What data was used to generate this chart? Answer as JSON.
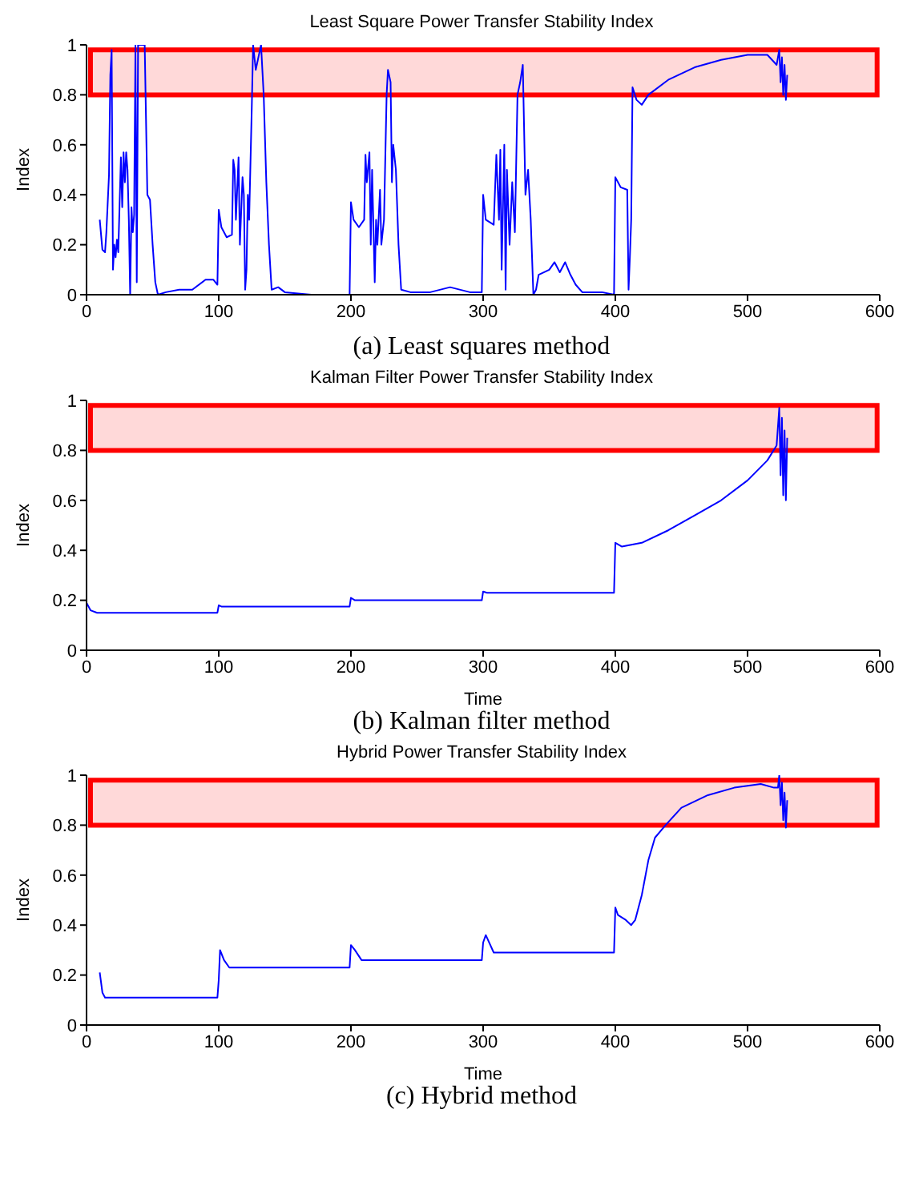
{
  "chart_data": [
    {
      "type": "line",
      "title": "Least Square Power Transfer Stability Index",
      "ylabel": "Index",
      "xlim": [
        0,
        600
      ],
      "xticks": [
        0,
        100,
        200,
        300,
        400,
        500,
        600
      ],
      "ylim": [
        0,
        1
      ],
      "yticks": [
        0,
        0.2,
        0.4,
        0.6,
        0.8,
        1
      ],
      "bands": [
        {
          "axis": "y",
          "from": 0.8,
          "to": 0.98,
          "color": "#ff0000"
        }
      ],
      "annotations": [
        "(a) Least squares method"
      ],
      "series": [
        {
          "color": "#0000ff",
          "x": [
            10,
            12,
            14,
            15,
            17,
            18,
            19,
            20,
            21,
            22,
            23,
            24,
            26,
            27,
            28,
            29,
            30,
            31,
            32,
            33,
            34,
            35,
            36,
            37,
            38,
            39,
            40,
            44,
            46,
            48,
            50,
            52,
            54,
            60,
            70,
            80,
            90,
            96,
            99,
            100,
            102,
            106,
            110,
            111,
            112,
            113,
            115,
            116,
            118,
            119,
            120,
            121,
            122,
            123,
            125,
            126,
            128,
            132,
            134,
            136,
            138,
            140,
            145,
            150,
            170,
            199,
            200,
            202,
            206,
            210,
            211,
            212,
            214,
            215,
            216,
            218,
            219,
            220,
            222,
            223,
            225,
            226,
            227,
            228,
            230,
            231,
            232,
            234,
            236,
            238,
            245,
            260,
            275,
            290,
            299,
            300,
            302,
            308,
            310,
            312,
            313,
            314,
            316,
            317,
            318,
            320,
            322,
            324,
            326,
            328,
            330,
            332,
            334,
            336,
            338,
            340,
            342,
            350,
            354,
            358,
            362,
            366,
            370,
            375,
            390,
            399,
            400,
            404,
            409,
            410,
            411,
            412,
            413,
            416,
            420,
            425,
            440,
            460,
            480,
            500,
            515,
            522,
            524,
            525,
            526,
            527,
            528,
            529,
            530
          ],
          "values": [
            0.3,
            0.18,
            0.17,
            0.25,
            0.48,
            0.88,
            0.98,
            0.1,
            0.2,
            0.15,
            0.22,
            0.17,
            0.55,
            0.35,
            0.57,
            0.45,
            0.57,
            0.5,
            0.3,
            0,
            0.35,
            0.25,
            0.32,
            1,
            0.05,
            1,
            1,
            1,
            0.4,
            0.38,
            0.2,
            0.05,
            0,
            0.01,
            0.02,
            0.02,
            0.06,
            0.06,
            0.04,
            0.34,
            0.27,
            0.23,
            0.24,
            0.54,
            0.5,
            0.3,
            0.55,
            0.2,
            0.47,
            0.4,
            0.02,
            0.1,
            0.4,
            0.3,
            0.75,
            1,
            0.9,
            1,
            0.8,
            0.45,
            0.2,
            0.02,
            0.03,
            0.01,
            0,
            0,
            0.37,
            0.3,
            0.27,
            0.3,
            0.56,
            0.45,
            0.57,
            0.2,
            0.5,
            0.05,
            0.3,
            0.2,
            0.42,
            0.2,
            0.3,
            0.55,
            0.8,
            0.9,
            0.85,
            0.45,
            0.6,
            0.5,
            0.2,
            0.02,
            0.01,
            0.01,
            0.03,
            0.01,
            0.01,
            0.4,
            0.3,
            0.28,
            0.56,
            0.3,
            0.58,
            0.1,
            0.6,
            0.02,
            0.5,
            0.2,
            0.45,
            0.25,
            0.8,
            0.85,
            0.92,
            0.4,
            0.5,
            0.3,
            0,
            0.02,
            0.08,
            0.1,
            0.13,
            0.09,
            0.13,
            0.08,
            0.04,
            0.01,
            0.01,
            0,
            0.47,
            0.43,
            0.42,
            0.02,
            0.15,
            0.3,
            0.83,
            0.78,
            0.76,
            0.8,
            0.86,
            0.91,
            0.94,
            0.96,
            0.96,
            0.92,
            0.98,
            0.85,
            0.95,
            0.8,
            0.92,
            0.78,
            0.88
          ]
        }
      ]
    },
    {
      "type": "line",
      "title": "Kalman Filter Power Transfer Stability Index",
      "xlabel": "Time",
      "ylabel": "Index",
      "xlim": [
        0,
        600
      ],
      "xticks": [
        0,
        100,
        200,
        300,
        400,
        500,
        600
      ],
      "ylim": [
        0,
        1
      ],
      "yticks": [
        0,
        0.2,
        0.4,
        0.6,
        0.8,
        1
      ],
      "bands": [
        {
          "axis": "y",
          "from": 0.8,
          "to": 0.98,
          "color": "#ff0000"
        }
      ],
      "annotations": [
        "(b) Kalman filter method"
      ],
      "series": [
        {
          "color": "#0000ff",
          "x": [
            0,
            3,
            8,
            99,
            100,
            102,
            199,
            200,
            203,
            299,
            300,
            303,
            399,
            400,
            405,
            420,
            440,
            460,
            480,
            500,
            515,
            522,
            524,
            525,
            526,
            527,
            528,
            529,
            530
          ],
          "values": [
            0.19,
            0.16,
            0.15,
            0.15,
            0.18,
            0.175,
            0.175,
            0.21,
            0.2,
            0.2,
            0.235,
            0.23,
            0.23,
            0.43,
            0.415,
            0.43,
            0.48,
            0.54,
            0.6,
            0.68,
            0.76,
            0.82,
            0.97,
            0.7,
            0.93,
            0.62,
            0.88,
            0.6,
            0.85
          ]
        }
      ]
    },
    {
      "type": "line",
      "title": "Hybrid Power Transfer Stability Index",
      "xlabel": "Time",
      "ylabel": "Index",
      "xlim": [
        0,
        600
      ],
      "xticks": [
        0,
        100,
        200,
        300,
        400,
        500,
        600
      ],
      "ylim": [
        0,
        1
      ],
      "yticks": [
        0,
        0.2,
        0.4,
        0.6,
        0.8,
        1
      ],
      "bands": [
        {
          "axis": "y",
          "from": 0.8,
          "to": 0.98,
          "color": "#ff0000"
        }
      ],
      "annotations": [
        "(c) Hybrid method"
      ],
      "series": [
        {
          "color": "#0000ff",
          "x": [
            10,
            12,
            14,
            30,
            99,
            100,
            101,
            104,
            108,
            199,
            200,
            203,
            208,
            299,
            300,
            302,
            308,
            399,
            400,
            402,
            408,
            412,
            415,
            420,
            425,
            430,
            438,
            450,
            470,
            490,
            510,
            520,
            523,
            524,
            525,
            526,
            527,
            528,
            529,
            530
          ],
          "values": [
            0.21,
            0.13,
            0.11,
            0.11,
            0.11,
            0.18,
            0.3,
            0.26,
            0.23,
            0.23,
            0.32,
            0.3,
            0.26,
            0.26,
            0.33,
            0.36,
            0.29,
            0.29,
            0.47,
            0.44,
            0.42,
            0.4,
            0.42,
            0.52,
            0.66,
            0.75,
            0.8,
            0.87,
            0.92,
            0.95,
            0.965,
            0.95,
            0.95,
            1,
            0.88,
            0.97,
            0.82,
            0.93,
            0.79,
            0.9
          ]
        }
      ]
    }
  ]
}
